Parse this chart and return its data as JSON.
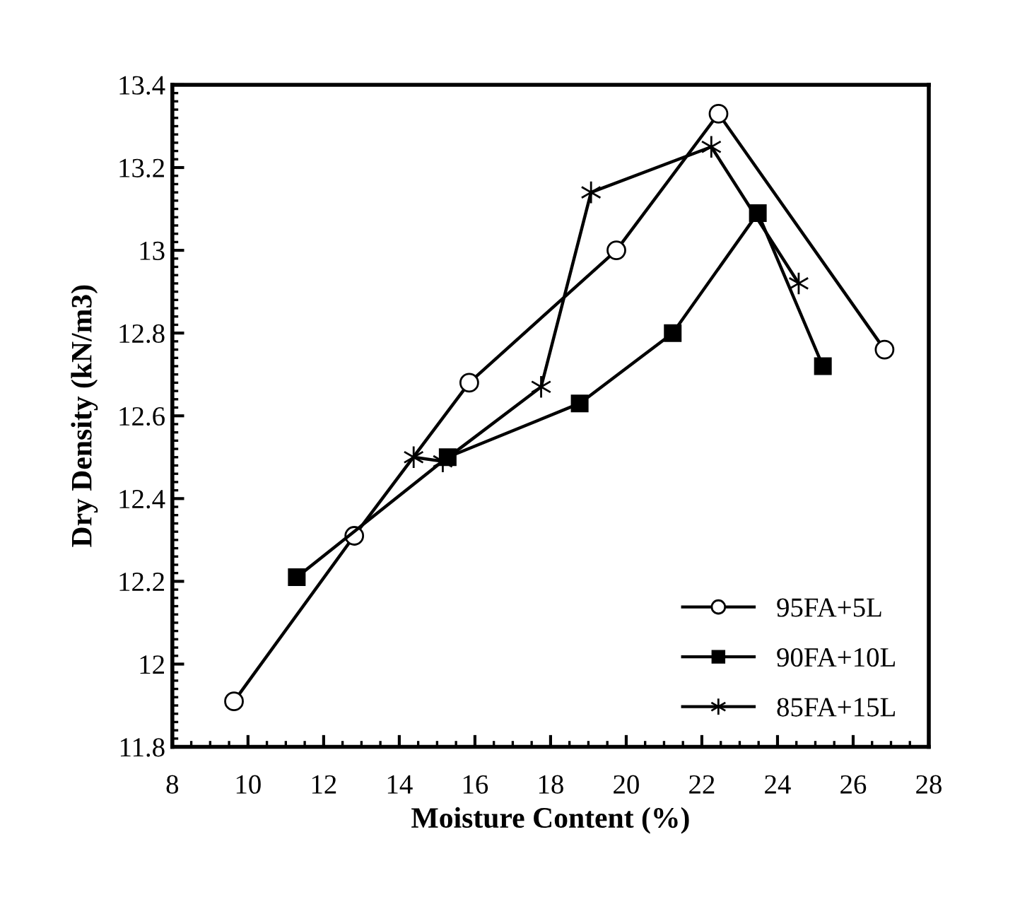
{
  "chart_data": {
    "type": "line",
    "xlabel": "Moisture Content (%)",
    "ylabel": "Dry Density (kN/m3)",
    "xlim": [
      8,
      28
    ],
    "xticks": [
      8,
      10,
      12,
      14,
      16,
      18,
      20,
      22,
      24,
      26,
      28
    ],
    "ylim": [
      11.8,
      13.4
    ],
    "yticks": [
      11.8,
      12,
      12.2,
      12.4,
      12.6,
      12.8,
      13,
      13.2,
      13.4
    ],
    "grid": false,
    "legend": "bottom right",
    "series": [
      {
        "name": "95FA+5L",
        "color": "#000000",
        "marker": "circle",
        "x": [
          9.63,
          12.81,
          15.85,
          19.74,
          22.44,
          26.83
        ],
        "values": [
          11.91,
          12.31,
          12.68,
          13.0,
          13.33,
          12.76
        ]
      },
      {
        "name": "90FA+10L",
        "color": "#000000",
        "marker": "square",
        "x": [
          11.29,
          15.28,
          18.77,
          21.23,
          23.48,
          25.2
        ],
        "values": [
          12.21,
          12.5,
          12.63,
          12.8,
          13.09,
          12.72
        ]
      },
      {
        "name": "85FA+15L",
        "color": "#000000",
        "marker": "cross",
        "x": [
          14.38,
          15.15,
          17.75,
          19.07,
          22.25,
          24.56
        ],
        "values": [
          12.5,
          12.49,
          12.67,
          13.14,
          13.25,
          12.92
        ]
      }
    ]
  }
}
